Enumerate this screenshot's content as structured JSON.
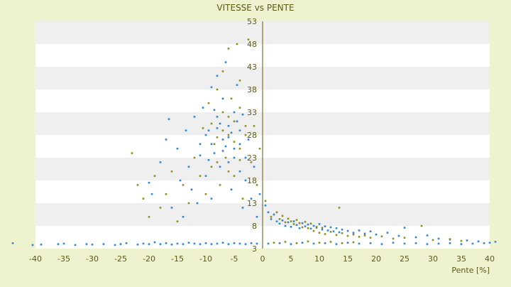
{
  "chart_data": {
    "type": "scatter",
    "title": "VITESSE vs PENTE",
    "xlabel": "Pente [%]",
    "ylabel": "",
    "xlim": [
      -40,
      40
    ],
    "ylim": [
      3,
      53
    ],
    "xticks": [
      -40,
      -35,
      -30,
      -25,
      -20,
      -15,
      -10,
      -5,
      0,
      5,
      10,
      15,
      20,
      25,
      30,
      35,
      40
    ],
    "yticks": [
      3,
      8,
      13,
      18,
      23,
      28,
      33,
      38,
      43,
      48,
      53
    ],
    "y_axis_at_x": 0,
    "grid": "horizontal alternating bands",
    "legend": "none",
    "colors": {
      "background": "#eef2cf",
      "band_light": "#ffffff",
      "band_dark": "#efefef",
      "axis_text": "#5b5b14",
      "series_1": "#2e86d6",
      "series_2": "#8d8f1a"
    },
    "series": [
      {
        "color": "#2e86d6",
        "points": [
          [
            -44,
            4.2
          ],
          [
            -40.5,
            3.8
          ],
          [
            -39,
            3.9
          ],
          [
            -36,
            4.0
          ],
          [
            -35,
            4.1
          ],
          [
            -33,
            3.8
          ],
          [
            -31,
            4.0
          ],
          [
            -30,
            3.9
          ],
          [
            -28,
            4.0
          ],
          [
            -26,
            3.8
          ],
          [
            -25,
            4.0
          ],
          [
            -24,
            4.2
          ],
          [
            -22,
            3.9
          ],
          [
            -21,
            4.1
          ],
          [
            -20,
            4.0
          ],
          [
            -19,
            4.4
          ],
          [
            -18,
            4.0
          ],
          [
            -17,
            4.2
          ],
          [
            -16,
            3.9
          ],
          [
            -15,
            4.1
          ],
          [
            -14,
            4.0
          ],
          [
            -13,
            4.3
          ],
          [
            -12,
            4.1
          ],
          [
            -11,
            4.0
          ],
          [
            -10,
            4.2
          ],
          [
            -9,
            4.0
          ],
          [
            -8,
            4.1
          ],
          [
            -7,
            4.3
          ],
          [
            -6,
            4.0
          ],
          [
            -5,
            4.2
          ],
          [
            -4,
            4.1
          ],
          [
            -3,
            4.0
          ],
          [
            -2,
            4.2
          ],
          [
            -1,
            4.1
          ],
          [
            -20,
            17.5
          ],
          [
            -19.5,
            15.0
          ],
          [
            -18,
            22.0
          ],
          [
            -17,
            27.0
          ],
          [
            -16.5,
            31.5
          ],
          [
            -16,
            12.0
          ],
          [
            -15,
            25.0
          ],
          [
            -14.5,
            18.0
          ],
          [
            -14,
            10.0
          ],
          [
            -13.5,
            29.0
          ],
          [
            -13,
            21.0
          ],
          [
            -12.5,
            16.0
          ],
          [
            -12,
            32.0
          ],
          [
            -11.5,
            13.0
          ],
          [
            -11,
            26.0
          ],
          [
            -10.5,
            34.0
          ],
          [
            -10,
            19.0
          ],
          [
            -9.5,
            29.0
          ],
          [
            -9,
            38.5
          ],
          [
            -9,
            14.0
          ],
          [
            -8.5,
            24.0
          ],
          [
            -8,
            32.0
          ],
          [
            -8,
            41.0
          ],
          [
            -7.5,
            21.0
          ],
          [
            -7,
            27.0
          ],
          [
            -7,
            36.0
          ],
          [
            -6.5,
            44.0
          ],
          [
            -6,
            22.0
          ],
          [
            -6,
            30.0
          ],
          [
            -5.5,
            16.0
          ],
          [
            -5,
            25.0
          ],
          [
            -5,
            33.0
          ],
          [
            -4.5,
            39.0
          ],
          [
            -4,
            20.0
          ],
          [
            -4,
            29.0
          ],
          [
            -3.5,
            12.0
          ],
          [
            -3,
            23.0
          ],
          [
            -3,
            18.0
          ],
          [
            -2.5,
            27.0
          ],
          [
            -2,
            14.0
          ],
          [
            -1.5,
            21.0
          ],
          [
            -1,
            10.0
          ],
          [
            -0.5,
            15.0
          ],
          [
            -10,
            28.0
          ],
          [
            -9,
            26.0
          ],
          [
            -8,
            29.5
          ],
          [
            -7,
            24.5
          ],
          [
            -6,
            27.5
          ],
          [
            -5,
            23.0
          ],
          [
            -4.5,
            31.0
          ],
          [
            -8.5,
            33.5
          ],
          [
            -7.5,
            30.5
          ],
          [
            -6.5,
            25.5
          ],
          [
            -5.5,
            28.5
          ],
          [
            -9.5,
            22.5
          ],
          [
            -4,
            26.0
          ],
          [
            -3.5,
            32.5
          ],
          [
            -11,
            23.5
          ],
          [
            0.5,
            12.5
          ],
          [
            1,
            11.0
          ],
          [
            1.5,
            9.5
          ],
          [
            2,
            10.5
          ],
          [
            2.5,
            9.0
          ],
          [
            3,
            8.5
          ],
          [
            3.5,
            9.2
          ],
          [
            4,
            8.0
          ],
          [
            4.5,
            8.8
          ],
          [
            5,
            7.8
          ],
          [
            5.5,
            9.0
          ],
          [
            6,
            8.2
          ],
          [
            6.5,
            7.5
          ],
          [
            7,
            8.6
          ],
          [
            7.5,
            7.9
          ],
          [
            8,
            8.3
          ],
          [
            8.5,
            7.4
          ],
          [
            9,
            8.0
          ],
          [
            9.5,
            7.6
          ],
          [
            10,
            8.4
          ],
          [
            10.5,
            7.2
          ],
          [
            11,
            7.9
          ],
          [
            11.5,
            7.0
          ],
          [
            12,
            7.7
          ],
          [
            12.5,
            6.8
          ],
          [
            13,
            7.5
          ],
          [
            13.5,
            6.6
          ],
          [
            14,
            7.2
          ],
          [
            15,
            6.9
          ],
          [
            16,
            6.5
          ],
          [
            17,
            7.0
          ],
          [
            18,
            6.3
          ],
          [
            19,
            6.8
          ],
          [
            20,
            6.1
          ],
          [
            22,
            6.5
          ],
          [
            24,
            5.8
          ],
          [
            25,
            7.6
          ],
          [
            27,
            5.5
          ],
          [
            29,
            5.9
          ],
          [
            31,
            5.2
          ],
          [
            33,
            5.0
          ],
          [
            36,
            4.8
          ],
          [
            38,
            4.6
          ],
          [
            40,
            4.3
          ],
          [
            41,
            4.5
          ],
          [
            1,
            4.1
          ],
          [
            3,
            4.2
          ],
          [
            5,
            4.0
          ],
          [
            7,
            4.3
          ],
          [
            9,
            4.1
          ],
          [
            11,
            4.2
          ],
          [
            13,
            4.0
          ],
          [
            15,
            4.3
          ],
          [
            17,
            4.1
          ],
          [
            19,
            4.2
          ],
          [
            21,
            4.0
          ],
          [
            23,
            4.3
          ],
          [
            25,
            4.1
          ],
          [
            27,
            4.2
          ],
          [
            29,
            4.0
          ],
          [
            31,
            4.1
          ],
          [
            33,
            4.2
          ],
          [
            35,
            4.0
          ],
          [
            37,
            4.1
          ],
          [
            39,
            4.2
          ]
        ]
      },
      {
        "color": "#8d8f1a",
        "points": [
          [
            -23,
            24.0
          ],
          [
            -22,
            17.0
          ],
          [
            -21,
            14.0
          ],
          [
            -20,
            10.0
          ],
          [
            -19,
            19.0
          ],
          [
            -18,
            12.0
          ],
          [
            -17,
            15.0
          ],
          [
            -16,
            20.0
          ],
          [
            -15,
            9.0
          ],
          [
            -14,
            17.0
          ],
          [
            -13,
            13.0
          ],
          [
            -12,
            23.0
          ],
          [
            -11,
            19.0
          ],
          [
            -10.5,
            29.5
          ],
          [
            -10,
            15.0
          ],
          [
            -9.5,
            35.0
          ],
          [
            -9,
            21.0
          ],
          [
            -8.5,
            26.0
          ],
          [
            -8,
            38.0
          ],
          [
            -7.5,
            17.0
          ],
          [
            -7,
            33.0
          ],
          [
            -7,
            42.0
          ],
          [
            -6.5,
            23.0
          ],
          [
            -6,
            28.0
          ],
          [
            -6,
            47.0
          ],
          [
            -5.5,
            36.0
          ],
          [
            -5,
            19.0
          ],
          [
            -5,
            31.0
          ],
          [
            -4.5,
            48.0
          ],
          [
            -4,
            25.0
          ],
          [
            -4,
            40.0
          ],
          [
            -3.5,
            14.0
          ],
          [
            -3,
            28.0
          ],
          [
            -2.5,
            49.0
          ],
          [
            -2,
            22.0
          ],
          [
            -1.5,
            30.0
          ],
          [
            -1,
            17.0
          ],
          [
            -0.5,
            25.0
          ],
          [
            -9,
            30.5
          ],
          [
            -8,
            27.5
          ],
          [
            -7,
            29.0
          ],
          [
            -6,
            32.0
          ],
          [
            -5,
            26.5
          ],
          [
            -4,
            34.0
          ],
          [
            -3,
            30.0
          ],
          [
            -8,
            22.0
          ],
          [
            -6,
            20.0
          ],
          [
            -4,
            22.5
          ],
          [
            0.5,
            13.5
          ],
          [
            1.5,
            10.0
          ],
          [
            2.5,
            11.0
          ],
          [
            3,
            9.5
          ],
          [
            3.5,
            10.2
          ],
          [
            4,
            8.8
          ],
          [
            4.5,
            9.6
          ],
          [
            5,
            9.0
          ],
          [
            5.5,
            8.4
          ],
          [
            6,
            9.3
          ],
          [
            6.5,
            8.6
          ],
          [
            7,
            7.7
          ],
          [
            7.5,
            8.9
          ],
          [
            8,
            7.5
          ],
          [
            8.5,
            8.5
          ],
          [
            9,
            6.9
          ],
          [
            9.5,
            7.8
          ],
          [
            10,
            6.5
          ],
          [
            10.5,
            7.6
          ],
          [
            11,
            6.2
          ],
          [
            12,
            6.7
          ],
          [
            13,
            6.0
          ],
          [
            13.5,
            12.0
          ],
          [
            14,
            6.4
          ],
          [
            15,
            5.8
          ],
          [
            16,
            6.1
          ],
          [
            17,
            5.6
          ],
          [
            18,
            5.9
          ],
          [
            19,
            5.4
          ],
          [
            21,
            5.7
          ],
          [
            23,
            5.2
          ],
          [
            25,
            5.4
          ],
          [
            28,
            8.0
          ],
          [
            30,
            4.9
          ],
          [
            33,
            5.1
          ],
          [
            35,
            4.7
          ],
          [
            2,
            4.3
          ],
          [
            4,
            4.5
          ],
          [
            6,
            4.2
          ],
          [
            8,
            4.6
          ],
          [
            10,
            4.3
          ],
          [
            12,
            4.5
          ],
          [
            14,
            4.2
          ],
          [
            16,
            4.4
          ]
        ]
      }
    ]
  }
}
